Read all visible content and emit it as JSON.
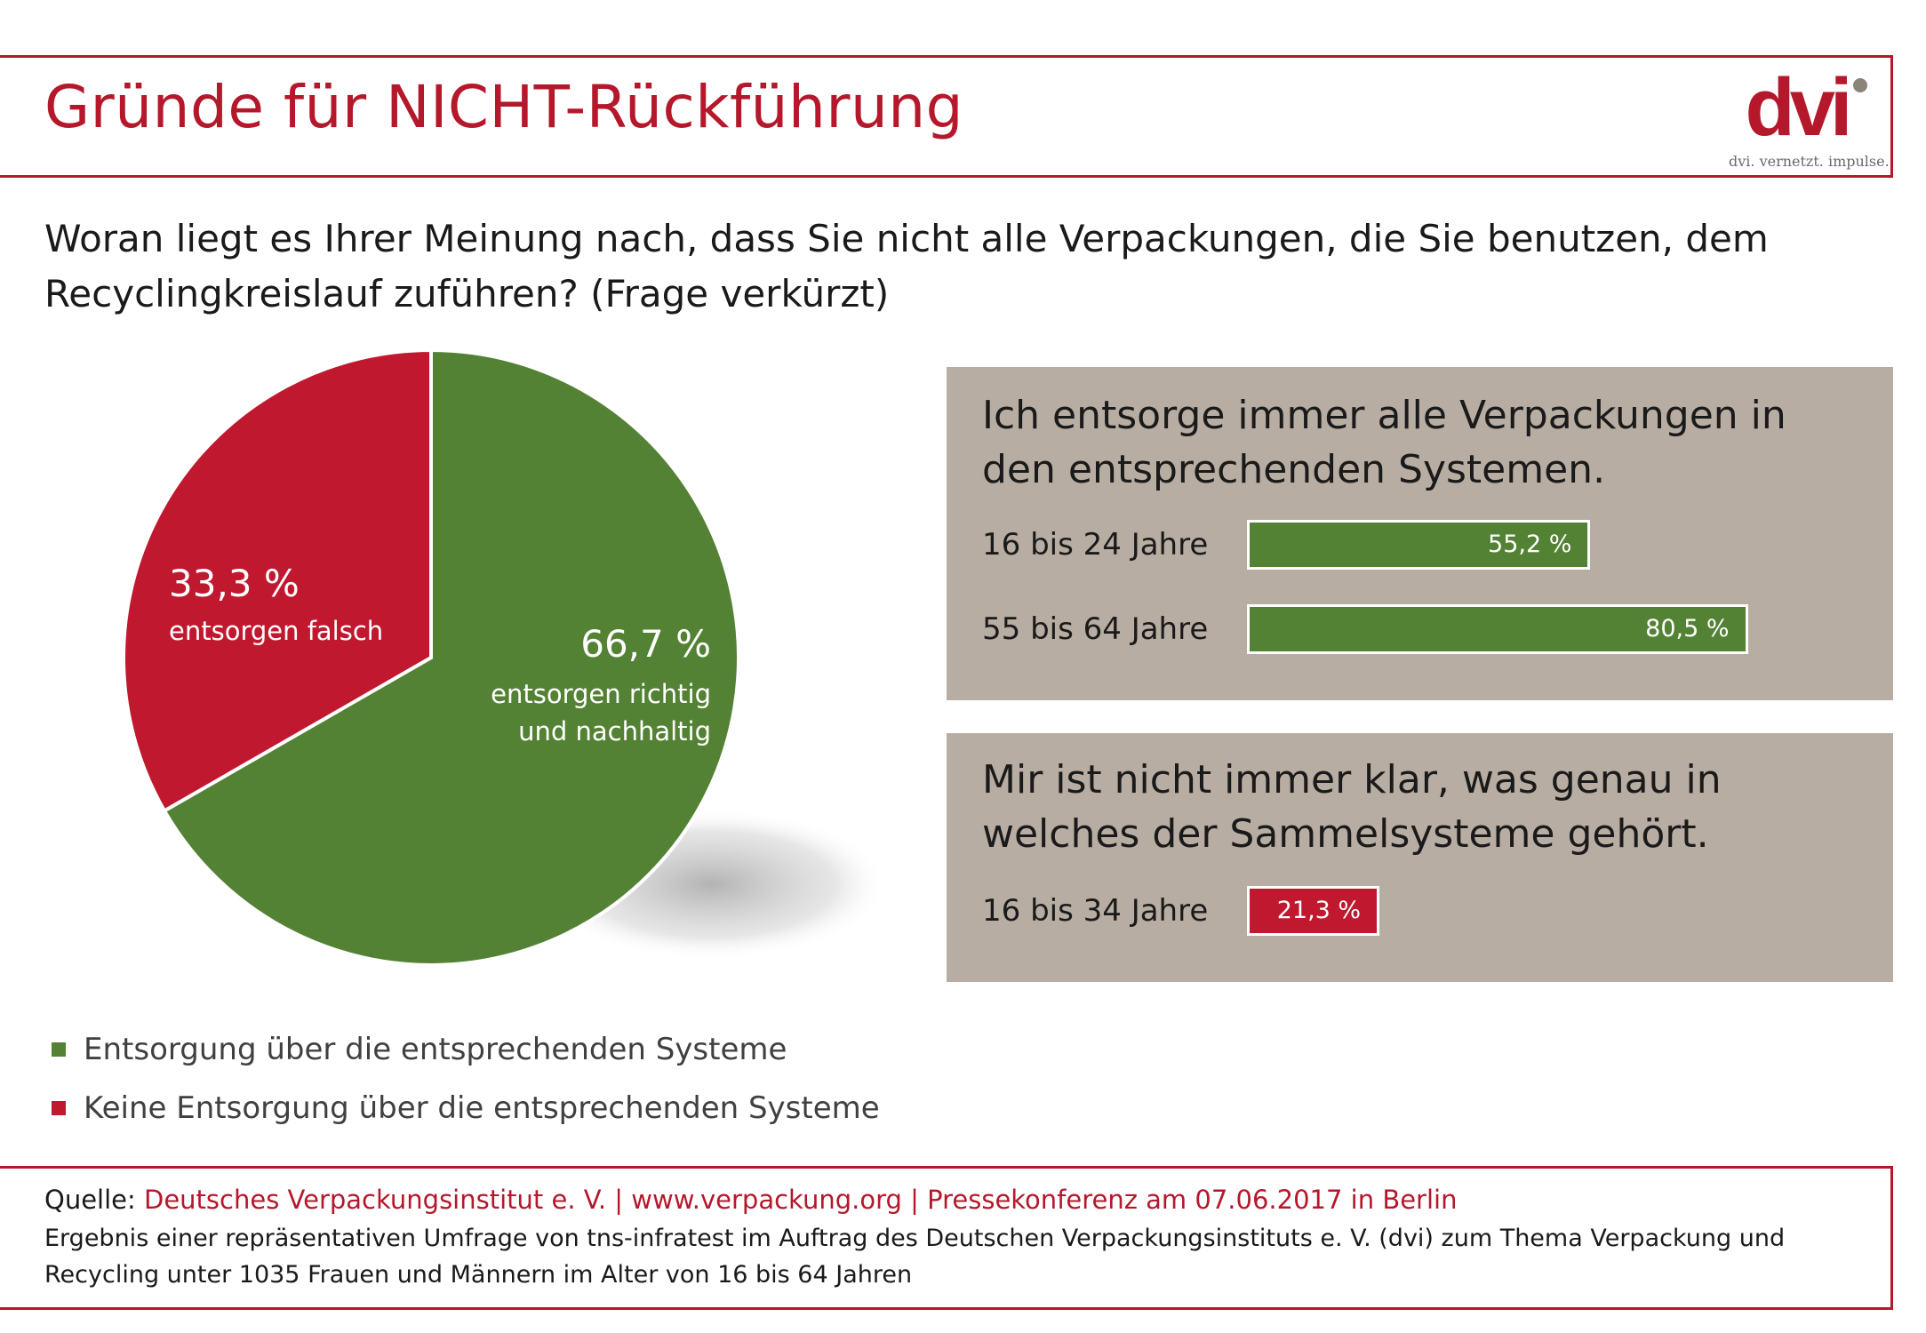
{
  "title": "Gründe für NICHT-Rückführung",
  "logo": {
    "text": "dvi. vernetzt. impulse.",
    "mark": "dvi"
  },
  "question": "Woran liegt es Ihrer Meinung nach, dass Sie nicht alle Verpackungen, die Sie benutzen, dem Recyclingkreislauf zuführen? (Frage verkürzt)",
  "colors": {
    "accent": "#b5182b",
    "green": "#548235",
    "red": "#c0192f",
    "panel": "#b8ada3"
  },
  "chart_data": [
    {
      "type": "pie",
      "title": "",
      "slices": [
        {
          "name": "Entsorgung über die entsprechenden Systeme",
          "value": 66.7,
          "label": "66,7 %",
          "text": "entsorgen richtig und nachhaltig",
          "color": "#548235"
        },
        {
          "name": "Keine Entsorgung über die entsprechenden Systeme",
          "value": 33.3,
          "label": "33,3 %",
          "text": "entsorgen falsch",
          "color": "#c0192f"
        }
      ],
      "legend": [
        "Entsorgung über die entsprechenden Systeme",
        "Keine Entsorgung über die entsprechenden Systeme"
      ]
    },
    {
      "type": "bar",
      "orientation": "horizontal",
      "title": "Ich entsorge immer alle Verpackungen in den entsprechenden Systemen.",
      "categories": [
        "16 bis 24 Jahre",
        "55 bis 64 Jahre"
      ],
      "values": [
        55.2,
        80.5
      ],
      "labels": [
        "55,2 %",
        "80,5 %"
      ],
      "xlim": [
        0,
        100
      ],
      "color": "#548235"
    },
    {
      "type": "bar",
      "orientation": "horizontal",
      "title": "Mir ist nicht immer klar, was genau in welches der Sammelsysteme gehört.",
      "categories": [
        "16 bis 34 Jahre"
      ],
      "values": [
        21.3
      ],
      "labels": [
        "21,3 %"
      ],
      "xlim": [
        0,
        100
      ],
      "color": "#c0192f"
    }
  ],
  "footer": {
    "source_prefix": "Quelle: ",
    "source": "Deutsches Verpackungsinstitut e. V. | www.verpackung.org | Pressekonferenz am 07.06.2017 in Berlin",
    "note": "Ergebnis einer repräsentativen Umfrage von tns-infratest im Auftrag des Deutschen Verpackungsinstituts e. V. (dvi) zum Thema Verpackung und Recycling unter 1035 Frauen und Männern im Alter von 16 bis 64 Jahren"
  }
}
